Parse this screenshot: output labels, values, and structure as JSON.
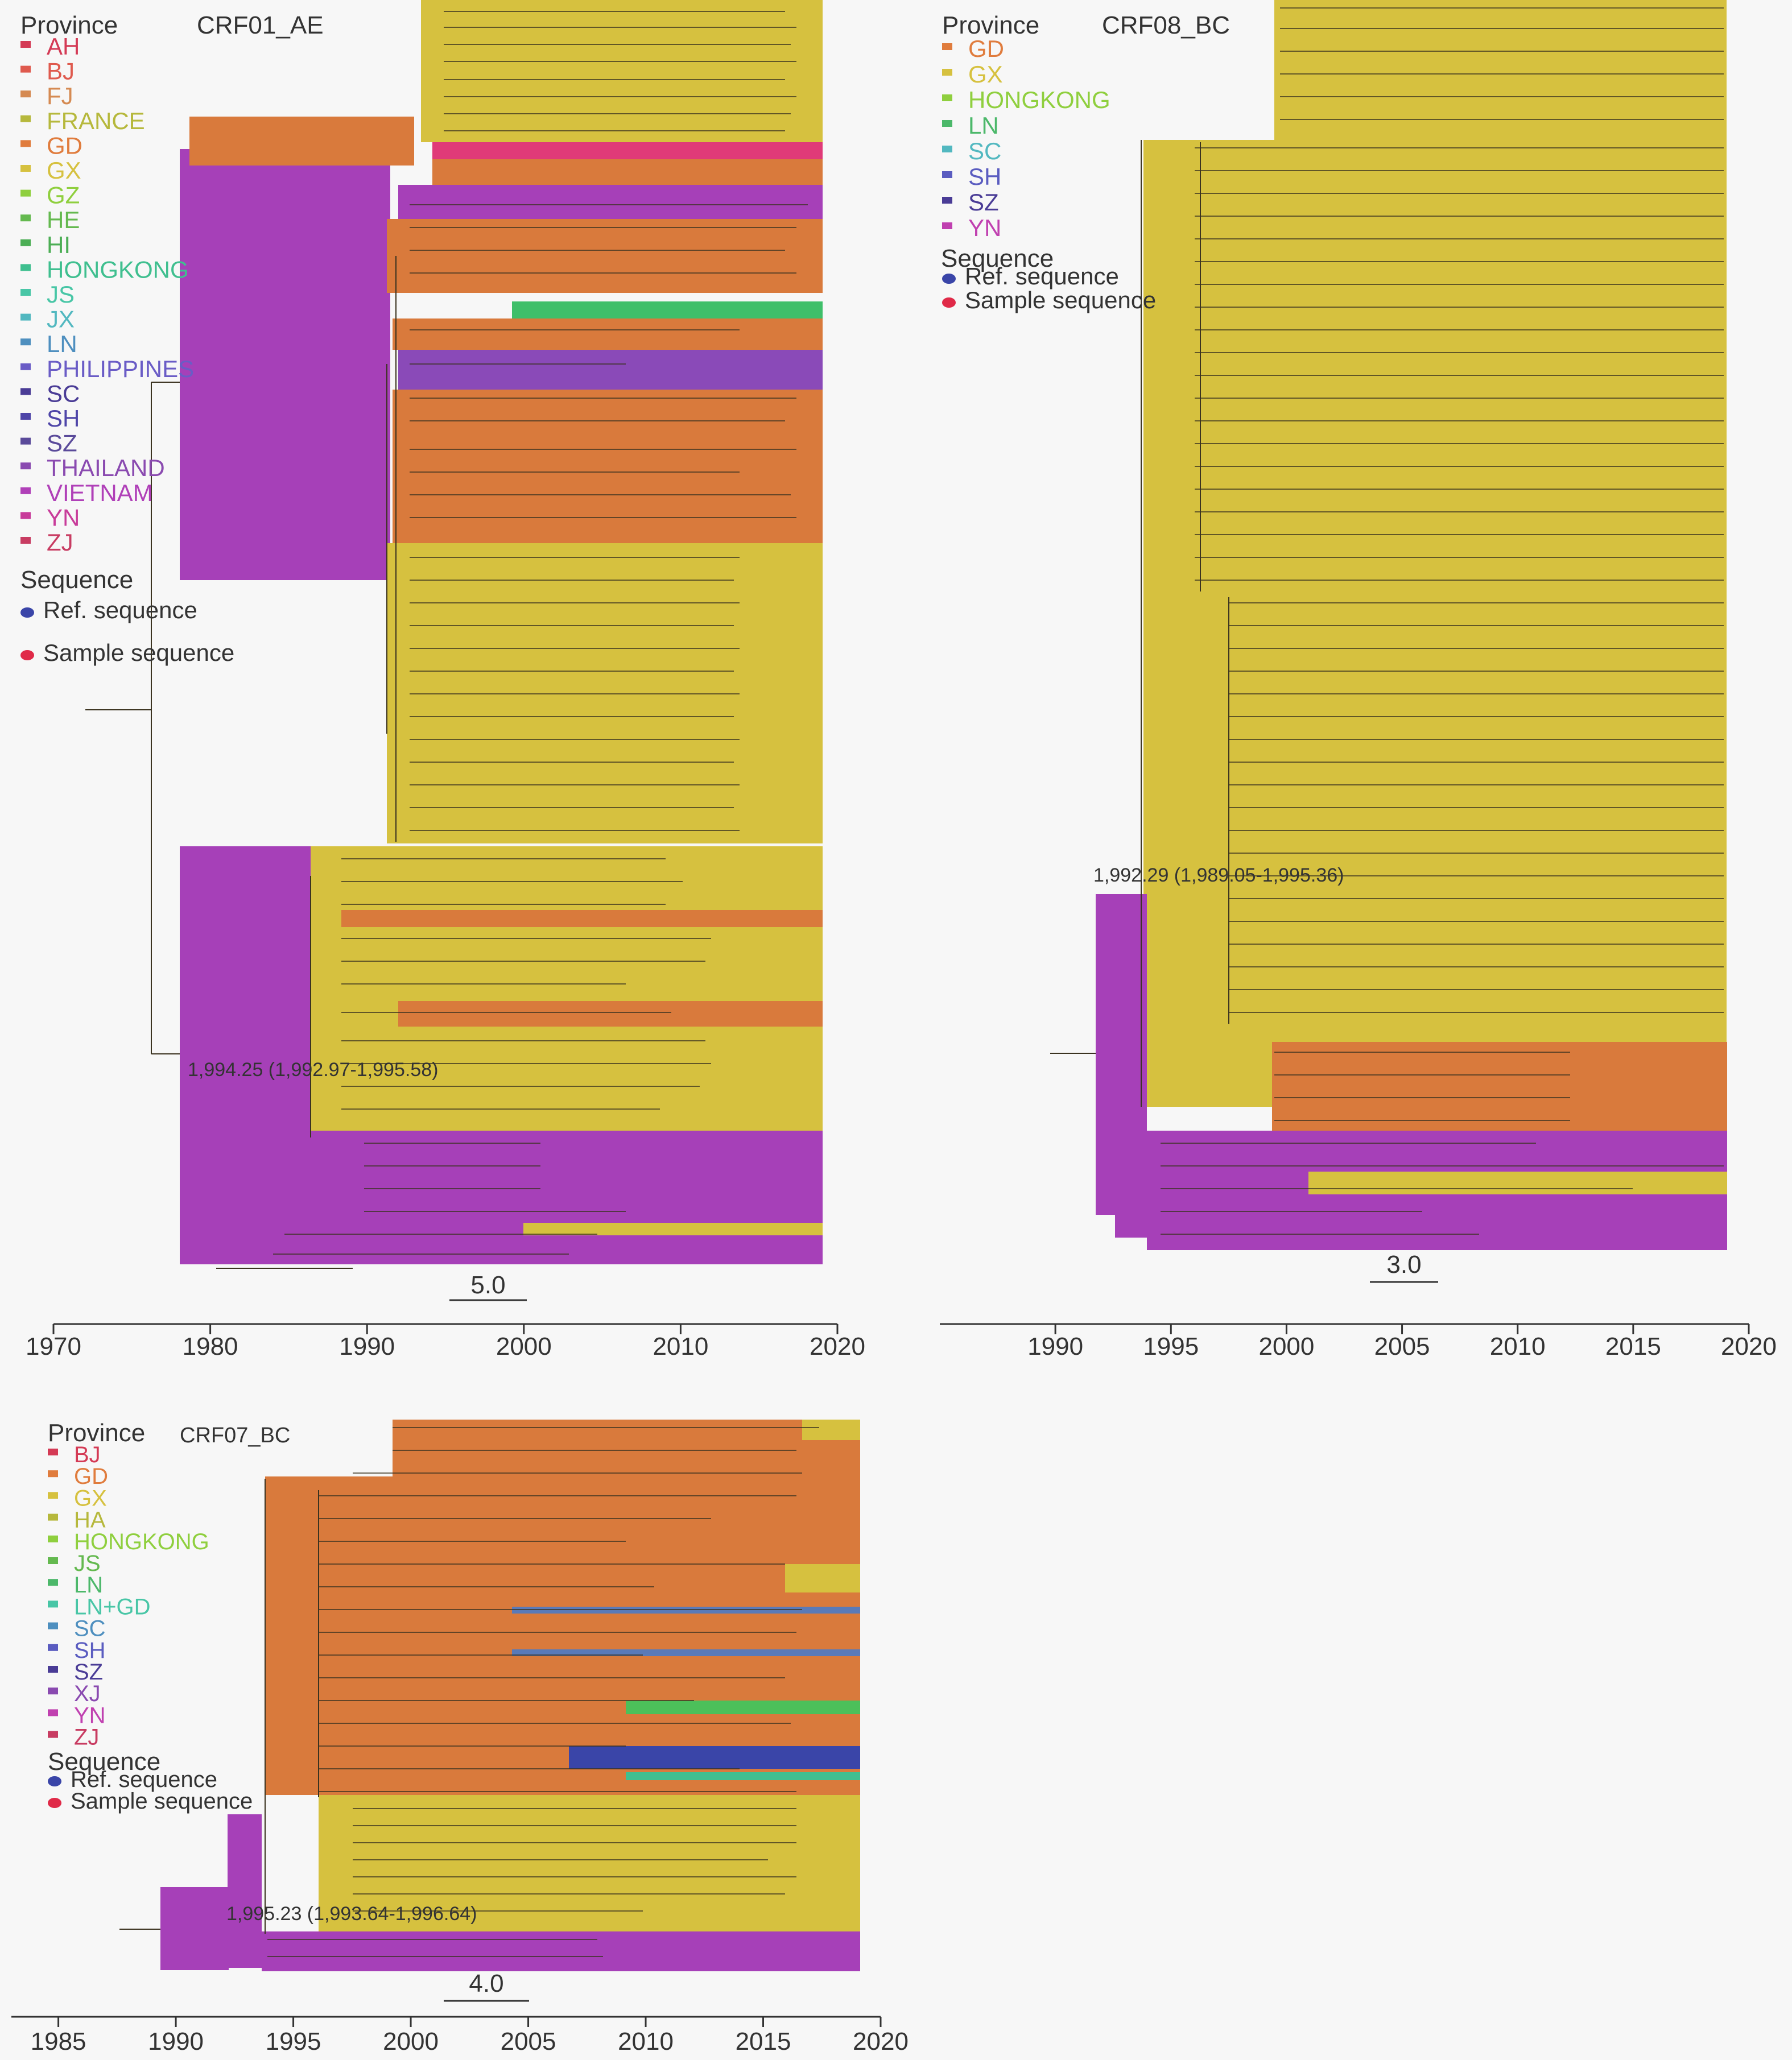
{
  "panels": [
    {
      "title": "CRF01_AE",
      "legend_heading": "Province",
      "provinces": [
        {
          "name": "AH",
          "color": "#d43a55"
        },
        {
          "name": "BJ",
          "color": "#df5a4e"
        },
        {
          "name": "FJ",
          "color": "#d58a52"
        },
        {
          "name": "FRANCE",
          "color": "#b6b83c"
        },
        {
          "name": "GD",
          "color": "#e07c3d"
        },
        {
          "name": "GX",
          "color": "#d6c13f"
        },
        {
          "name": "GZ",
          "color": "#8fcf3e"
        },
        {
          "name": "HE",
          "color": "#64b94f"
        },
        {
          "name": "HI",
          "color": "#4cae55"
        },
        {
          "name": "HONGKONG",
          "color": "#3fbf8f"
        },
        {
          "name": "JS",
          "color": "#48c6a6"
        },
        {
          "name": "JX",
          "color": "#52b8c0"
        },
        {
          "name": "LN",
          "color": "#4e8fbf"
        },
        {
          "name": "PHILIPPINES",
          "color": "#6a5cc6"
        },
        {
          "name": "SC",
          "color": "#4a3c96"
        },
        {
          "name": "SH",
          "color": "#4e45a8"
        },
        {
          "name": "SZ",
          "color": "#5a4a9a"
        },
        {
          "name": "THAILAND",
          "color": "#8a4ab0"
        },
        {
          "name": "VIETNAM",
          "color": "#b040b8"
        },
        {
          "name": "YN",
          "color": "#c83c9a"
        },
        {
          "name": "ZJ",
          "color": "#c83c62"
        }
      ],
      "sequence_heading": "Sequence",
      "sequence_types": [
        {
          "name": "Ref. sequence",
          "color": "#3a45a8"
        },
        {
          "name": "Sample sequence",
          "color": "#e02a48"
        }
      ],
      "node_annotation": "1,994.25 (1,992.97-1,995.58)",
      "scale_bar_label": "5.0",
      "axis_ticks": [
        "1970",
        "1980",
        "1990",
        "2000",
        "2010",
        "2020"
      ],
      "axis_range": [
        1970,
        2020
      ]
    },
    {
      "title": "CRF08_BC",
      "legend_heading": "Province",
      "provinces": [
        {
          "name": "GD",
          "color": "#e07c3d"
        },
        {
          "name": "GX",
          "color": "#d6c13f"
        },
        {
          "name": "HONGKONG",
          "color": "#8fcf3e"
        },
        {
          "name": "LN",
          "color": "#4cb86a"
        },
        {
          "name": "SC",
          "color": "#52b8c0"
        },
        {
          "name": "SH",
          "color": "#5a5cc0"
        },
        {
          "name": "SZ",
          "color": "#4a3c96"
        },
        {
          "name": "YN",
          "color": "#c040b0"
        }
      ],
      "sequence_heading": "Sequence",
      "sequence_types": [
        {
          "name": "Ref. sequence",
          "color": "#3a45a8"
        },
        {
          "name": "Sample sequence",
          "color": "#e02a48"
        }
      ],
      "node_annotation": "1,992.29 (1,989.05-1,995.36)",
      "scale_bar_label": "3.0",
      "axis_ticks": [
        "1990",
        "1995",
        "2000",
        "2005",
        "2010",
        "2015",
        "2020"
      ],
      "axis_range": [
        1985,
        2020
      ]
    },
    {
      "title": "CRF07_BC",
      "legend_heading": "Province",
      "provinces": [
        {
          "name": "BJ",
          "color": "#d43a55"
        },
        {
          "name": "GD",
          "color": "#e07c3d"
        },
        {
          "name": "GX",
          "color": "#d6c13f"
        },
        {
          "name": "HA",
          "color": "#b6b83c"
        },
        {
          "name": "HONGKONG",
          "color": "#8fcf3e"
        },
        {
          "name": "JS",
          "color": "#64b94f"
        },
        {
          "name": "LN",
          "color": "#4cb86a"
        },
        {
          "name": "LN+GD",
          "color": "#48c6a6"
        },
        {
          "name": "SC",
          "color": "#4e8fbf"
        },
        {
          "name": "SH",
          "color": "#5a5cc0"
        },
        {
          "name": "SZ",
          "color": "#4a3c96"
        },
        {
          "name": "XJ",
          "color": "#8a4ab0"
        },
        {
          "name": "YN",
          "color": "#c040b0"
        },
        {
          "name": "ZJ",
          "color": "#c83c62"
        }
      ],
      "sequence_heading": "Sequence",
      "sequence_types": [
        {
          "name": "Ref. sequence",
          "color": "#3a45a8"
        },
        {
          "name": "Sample sequence",
          "color": "#e02a48"
        }
      ],
      "node_annotation": "1,995.23 (1,993.64-1,996.64)",
      "scale_bar_label": "4.0",
      "axis_ticks": [
        "1985",
        "1990",
        "1995",
        "2000",
        "2005",
        "2010",
        "2015",
        "2020"
      ],
      "axis_range": [
        1983,
        2020
      ]
    }
  ]
}
